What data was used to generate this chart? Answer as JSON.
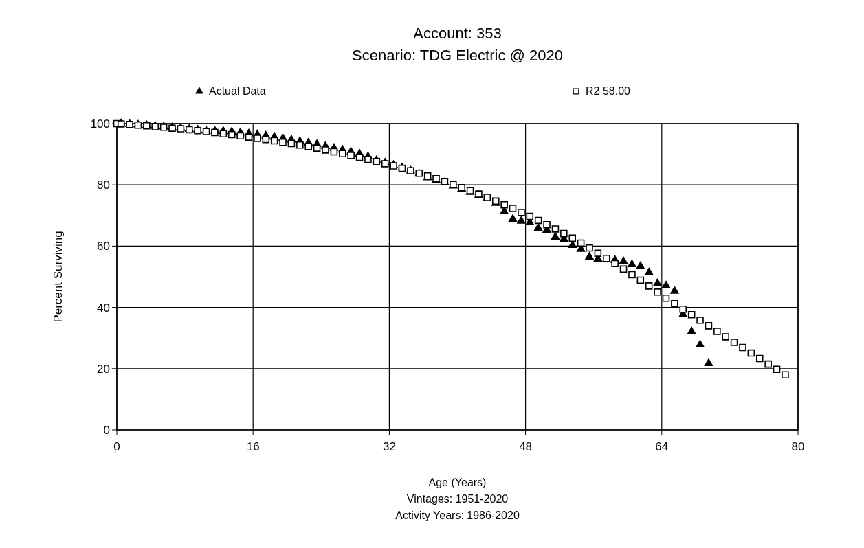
{
  "chart_data": {
    "type": "scatter",
    "title": "Account: 353",
    "subtitle": "Scenario: TDG Electric @ 2020",
    "xlabel": "Age (Years)",
    "ylabel": "Percent Surviving",
    "annotations": [
      "Vintages: 1951-2020",
      "Activity Years: 1986-2020"
    ],
    "xlim": [
      0,
      80
    ],
    "xticks": [
      0,
      16,
      32,
      48,
      64,
      80
    ],
    "ylim": [
      0,
      100
    ],
    "yticks": [
      0,
      20,
      40,
      60,
      80,
      100
    ],
    "grid": true,
    "legend": "top",
    "series": [
      {
        "name": "Actual Data",
        "color": "#000000",
        "marker": "triangle",
        "x": [
          0.5,
          1.5,
          2.5,
          3.5,
          4.5,
          5.5,
          6.5,
          7.5,
          8.5,
          9.5,
          10.5,
          11.5,
          12.5,
          13.5,
          14.5,
          15.5,
          16.5,
          17.5,
          18.5,
          19.5,
          20.5,
          21.5,
          22.5,
          23.5,
          24.5,
          25.5,
          26.5,
          27.5,
          28.5,
          29.5,
          30.5,
          31.5,
          32.5,
          33.5,
          34.5,
          35.5,
          36.5,
          37.5,
          38.5,
          39.5,
          40.5,
          41.5,
          42.5,
          43.5,
          44.5,
          45.5,
          46.5,
          47.5,
          48.5,
          49.5,
          50.5,
          51.5,
          52.5,
          53.5,
          54.5,
          55.5,
          56.5,
          57.5,
          58.5,
          59.5,
          60.5,
          61.5,
          62.5,
          63.5,
          64.5,
          65.5,
          66.5,
          67.5,
          68.5,
          69.5
        ],
        "values": [
          100,
          99.8,
          99.6,
          99.4,
          99.2,
          99.0,
          98.7,
          98.5,
          98.2,
          97.9,
          97.6,
          97.6,
          97.5,
          97.3,
          97.0,
          96.7,
          96.4,
          96.0,
          95.6,
          95.2,
          94.7,
          94.2,
          93.7,
          93.2,
          92.6,
          92.0,
          91.4,
          90.8,
          90.1,
          89.2,
          88.0,
          87.2,
          86.4,
          85.6,
          84.6,
          83.6,
          82.4,
          81.5,
          80.7,
          79.7,
          78.6,
          77.6,
          76.6,
          75.6,
          74.0,
          71.3,
          68.8,
          68.2,
          67.7,
          65.9,
          65.2,
          63.0,
          62.3,
          60.3,
          59.0,
          56.5,
          55.8,
          55.6,
          55.4,
          55.0,
          54.0,
          53.4,
          51.4,
          47.8,
          47.1,
          45.3,
          37.7,
          32.1,
          27.8,
          21.7
        ]
      },
      {
        "name": "R2 58.00",
        "color": "#000000",
        "marker": "square",
        "x": [
          0,
          0.5,
          1.5,
          2.5,
          3.5,
          4.5,
          5.5,
          6.5,
          7.5,
          8.5,
          9.5,
          10.5,
          11.5,
          12.5,
          13.5,
          14.5,
          15.5,
          16.5,
          17.5,
          18.5,
          19.5,
          20.5,
          21.5,
          22.5,
          23.5,
          24.5,
          25.5,
          26.5,
          27.5,
          28.5,
          29.5,
          30.5,
          31.5,
          32.5,
          33.5,
          34.5,
          35.5,
          36.5,
          37.5,
          38.5,
          39.5,
          40.5,
          41.5,
          42.5,
          43.5,
          44.5,
          45.5,
          46.5,
          47.5,
          48.5,
          49.5,
          50.5,
          51.5,
          52.5,
          53.5,
          54.5,
          55.5,
          56.5,
          57.5,
          58.5,
          59.5,
          60.5,
          61.5,
          62.5,
          63.5,
          64.5,
          65.5,
          66.5,
          67.5,
          68.5,
          69.5,
          70.5,
          71.5,
          72.5,
          73.5,
          74.5,
          75.5,
          76.5,
          77.5,
          78.5
        ],
        "values": [
          100,
          99.9,
          99.7,
          99.5,
          99.3,
          99.0,
          98.8,
          98.5,
          98.3,
          98.0,
          97.7,
          97.4,
          97.1,
          96.7,
          96.4,
          96.0,
          95.6,
          95.2,
          94.8,
          94.4,
          93.9,
          93.5,
          93.0,
          92.5,
          92.0,
          91.4,
          90.8,
          90.2,
          89.6,
          89.0,
          88.3,
          87.6,
          86.9,
          86.2,
          85.4,
          84.6,
          83.8,
          82.9,
          82.0,
          81.1,
          80.1,
          79.1,
          78.1,
          77.0,
          75.9,
          74.7,
          73.5,
          72.3,
          71.0,
          69.7,
          68.4,
          67.0,
          65.6,
          64.1,
          62.6,
          61.0,
          59.4,
          57.7,
          56.0,
          54.3,
          52.5,
          50.7,
          48.9,
          47.0,
          45.0,
          43.0,
          41.2,
          39.4,
          37.6,
          35.8,
          34.0,
          32.2,
          30.4,
          28.6,
          26.9,
          25.1,
          23.3,
          21.5,
          19.8,
          18.0
        ]
      }
    ]
  }
}
